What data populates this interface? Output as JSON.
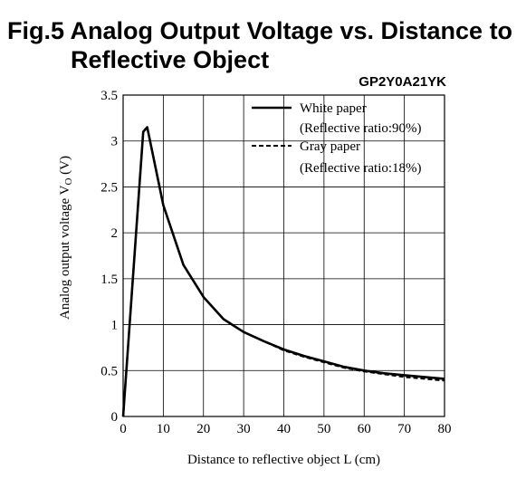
{
  "title_line1": "Fig.5 Analog Output Voltage vs. Distance to",
  "title_line2": "Reflective Object",
  "model": "GP2Y0A21YK",
  "chart_data": {
    "type": "line",
    "xlabel": "Distance to reflective object L (cm)",
    "ylabel_main": "Analog output voltage V",
    "ylabel_sub": "O",
    "ylabel_unit": " (V)",
    "xlim": [
      0,
      80
    ],
    "ylim": [
      0,
      3.5
    ],
    "xticks": [
      "0",
      "10",
      "20",
      "30",
      "40",
      "50",
      "60",
      "70",
      "80"
    ],
    "yticks": [
      "0",
      "0.5",
      "1",
      "1.5",
      "2",
      "2.5",
      "3",
      "3.5"
    ],
    "grid": true,
    "legend_position": "top-right",
    "series": [
      {
        "name": "White paper",
        "name_sub": "(Reflective ratio:90%)",
        "style": "solid",
        "x": [
          0,
          5,
          6,
          10,
          15,
          20,
          25,
          30,
          35,
          40,
          45,
          50,
          55,
          60,
          65,
          70,
          75,
          80
        ],
        "y": [
          0,
          3.1,
          3.15,
          2.3,
          1.65,
          1.3,
          1.06,
          0.92,
          0.82,
          0.73,
          0.66,
          0.6,
          0.54,
          0.5,
          0.47,
          0.45,
          0.43,
          0.41
        ]
      },
      {
        "name": "Gray paper",
        "name_sub": "(Reflective ratio:18%)",
        "style": "dashed",
        "x": [
          0,
          5,
          6,
          10,
          15,
          20,
          25,
          30,
          35,
          40,
          45,
          50,
          55,
          60,
          65,
          70,
          75,
          80
        ],
        "y": [
          0,
          3.1,
          3.15,
          2.3,
          1.65,
          1.3,
          1.06,
          0.92,
          0.82,
          0.72,
          0.65,
          0.59,
          0.53,
          0.49,
          0.46,
          0.43,
          0.41,
          0.39
        ]
      }
    ]
  }
}
